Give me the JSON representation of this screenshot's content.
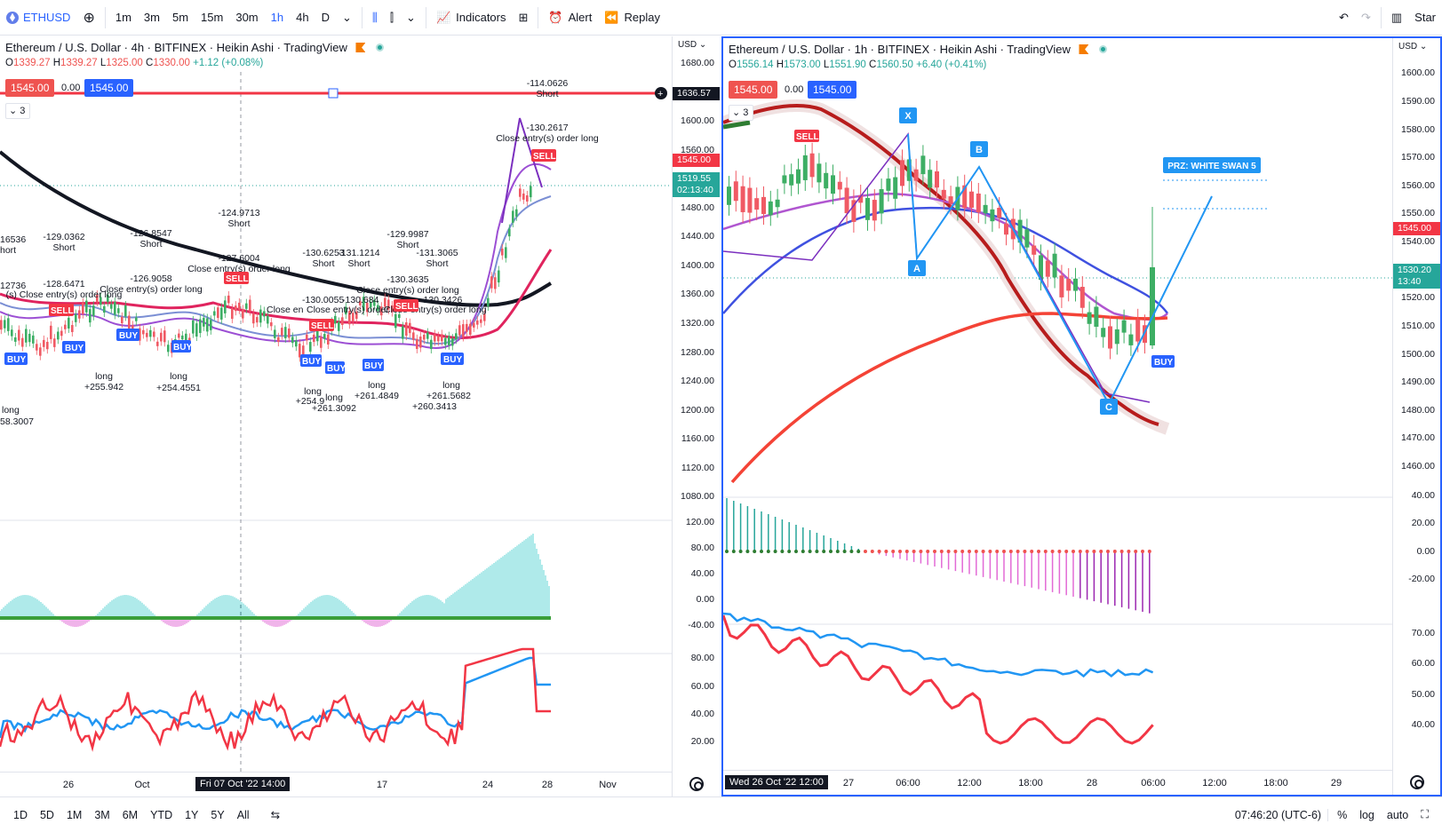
{
  "topbar": {
    "symbol": "ETHUSD",
    "intervals": [
      "1m",
      "3m",
      "5m",
      "15m",
      "30m",
      "1h",
      "4h",
      "D"
    ],
    "active_interval": "1h",
    "indicators_label": "Indicators",
    "alert_label": "Alert",
    "replay_label": "Replay",
    "right_label": "Star"
  },
  "left_pane": {
    "title": "Ethereum / U.S. Dollar · 4h · BITFINEX · Heikin Ashi · TradingView",
    "ohlc": {
      "o": "1339.27",
      "h": "1339.27",
      "l": "1325.00",
      "c": "1330.00",
      "chg": "+1.12 (+0.08%)"
    },
    "price_box_red": "1545.00",
    "price_box_mid": "0.00",
    "price_box_blue": "1545.00",
    "indicator_count": "3",
    "axis_header": "USD",
    "price_ticks": [
      "1680.00",
      "1600.00",
      "1560.00",
      "1480.00",
      "1440.00",
      "1400.00",
      "1360.00",
      "1320.00",
      "1280.00",
      "1240.00",
      "1200.00",
      "1160.00",
      "1120.00",
      "1080.00"
    ],
    "osc_ticks": [
      "120.00",
      "80.00",
      "40.00",
      "0.00",
      "-40.00"
    ],
    "rsi_ticks": [
      "80.00",
      "60.00",
      "40.00",
      "20.00"
    ],
    "label_hline": "1636.57",
    "label_last": "1545.00",
    "label_cur": "1519.55",
    "label_cur_time": "02:13:40",
    "x_ticks": [
      "26",
      "Oct",
      "17",
      "24",
      "28",
      "Nov"
    ],
    "x_highlight": "Fri 07 Oct '22  14:00",
    "annotations": {
      "a1": "-114.0626",
      "a1s": "Short",
      "a2": "-130.2617",
      "a2s": "Close entry(s) order long",
      "a3": "-124.9713",
      "a3s": "Short",
      "a4": "-127.6004",
      "a4s": "Close entry(s) order long",
      "a5": "-126.8547",
      "a5s": "Short",
      "a6": "-129.0362",
      "a6s": "Short",
      "a7": "16536",
      "a7s": "hort",
      "a8": "-126.9058",
      "a8s": "Close entry(s) order long",
      "a9": "-128.6471",
      "a9s": "(s) Close entry(s) order long",
      "a10": "12736",
      "a11": "-130.6253",
      "a11s": "Short",
      "a12": "-131.1214",
      "a12s": "Short",
      "a13": "-129.9987",
      "a13s": "Short",
      "a14": "-131.3065",
      "a14s": "Short",
      "a15": "-130.3635",
      "a15s": "Close entry(s) order long",
      "a16": "-130.0055",
      "a16b": "-130.684",
      "a17": "Close en",
      "a17b": "Close entry(s) order",
      "a18": "Close entry(s) order long",
      "a19": "-130.3426",
      "l1": "long",
      "l1v": "+255.942",
      "l2": "long",
      "l2v": "+254.4551",
      "l3": "long",
      "l3v": "58.3007",
      "l4": "long",
      "l4v": "+254.9",
      "l4b": "long",
      "l4bv": "+261.3092",
      "l5": "long",
      "l5v": "+261.4849",
      "l6": "long",
      "l6v": "+261.5682",
      "l6b": "+260.3413",
      "buy": "BUY",
      "sell": "SELL"
    }
  },
  "right_pane": {
    "title": "Ethereum / U.S. Dollar · 1h · BITFINEX · Heikin Ashi · TradingView",
    "ohlc": {
      "o": "1556.14",
      "h": "1573.00",
      "l": "1551.90",
      "c": "1560.50",
      "chg": "+6.40 (+0.41%)"
    },
    "price_box_red": "1545.00",
    "price_box_mid": "0.00",
    "price_box_blue": "1545.00",
    "indicator_count": "3",
    "axis_header": "USD",
    "price_ticks": [
      "1600.00",
      "1590.00",
      "1580.00",
      "1570.00",
      "1560.00",
      "1550.00",
      "1540.00",
      "1520.00",
      "1510.00",
      "1500.00",
      "1490.00",
      "1480.00",
      "1470.00",
      "1460.00"
    ],
    "osc_ticks": [
      "40.00",
      "20.00",
      "0.00",
      "-20.00"
    ],
    "rsi_ticks": [
      "70.00",
      "60.00",
      "50.00",
      "40.00"
    ],
    "label_last": "1545.00",
    "label_cur": "1530.20",
    "label_cur_time": "13:40",
    "x_ticks": [
      "27",
      "06:00",
      "12:00",
      "18:00",
      "28",
      "06:00",
      "12:00",
      "18:00",
      "29"
    ],
    "x_highlight": "Wed 26 Oct '22   12:00",
    "pattern_points": [
      "X",
      "A",
      "B",
      "C"
    ],
    "prz_label": "PRZ: WHITE SWAN 5",
    "sell": "SELL",
    "buy": "BUY"
  },
  "bottombar": {
    "ranges": [
      "1D",
      "5D",
      "1M",
      "3M",
      "6M",
      "YTD",
      "1Y",
      "5Y",
      "All"
    ],
    "time": "07:46:20 (UTC-6)",
    "percent": "%",
    "log": "log",
    "auto": "auto"
  },
  "colors": {
    "accent": "#2962ff",
    "up": "#26a69a",
    "down": "#ef5350",
    "green_candle": "#3dae64",
    "red_candle": "#f05a64"
  }
}
